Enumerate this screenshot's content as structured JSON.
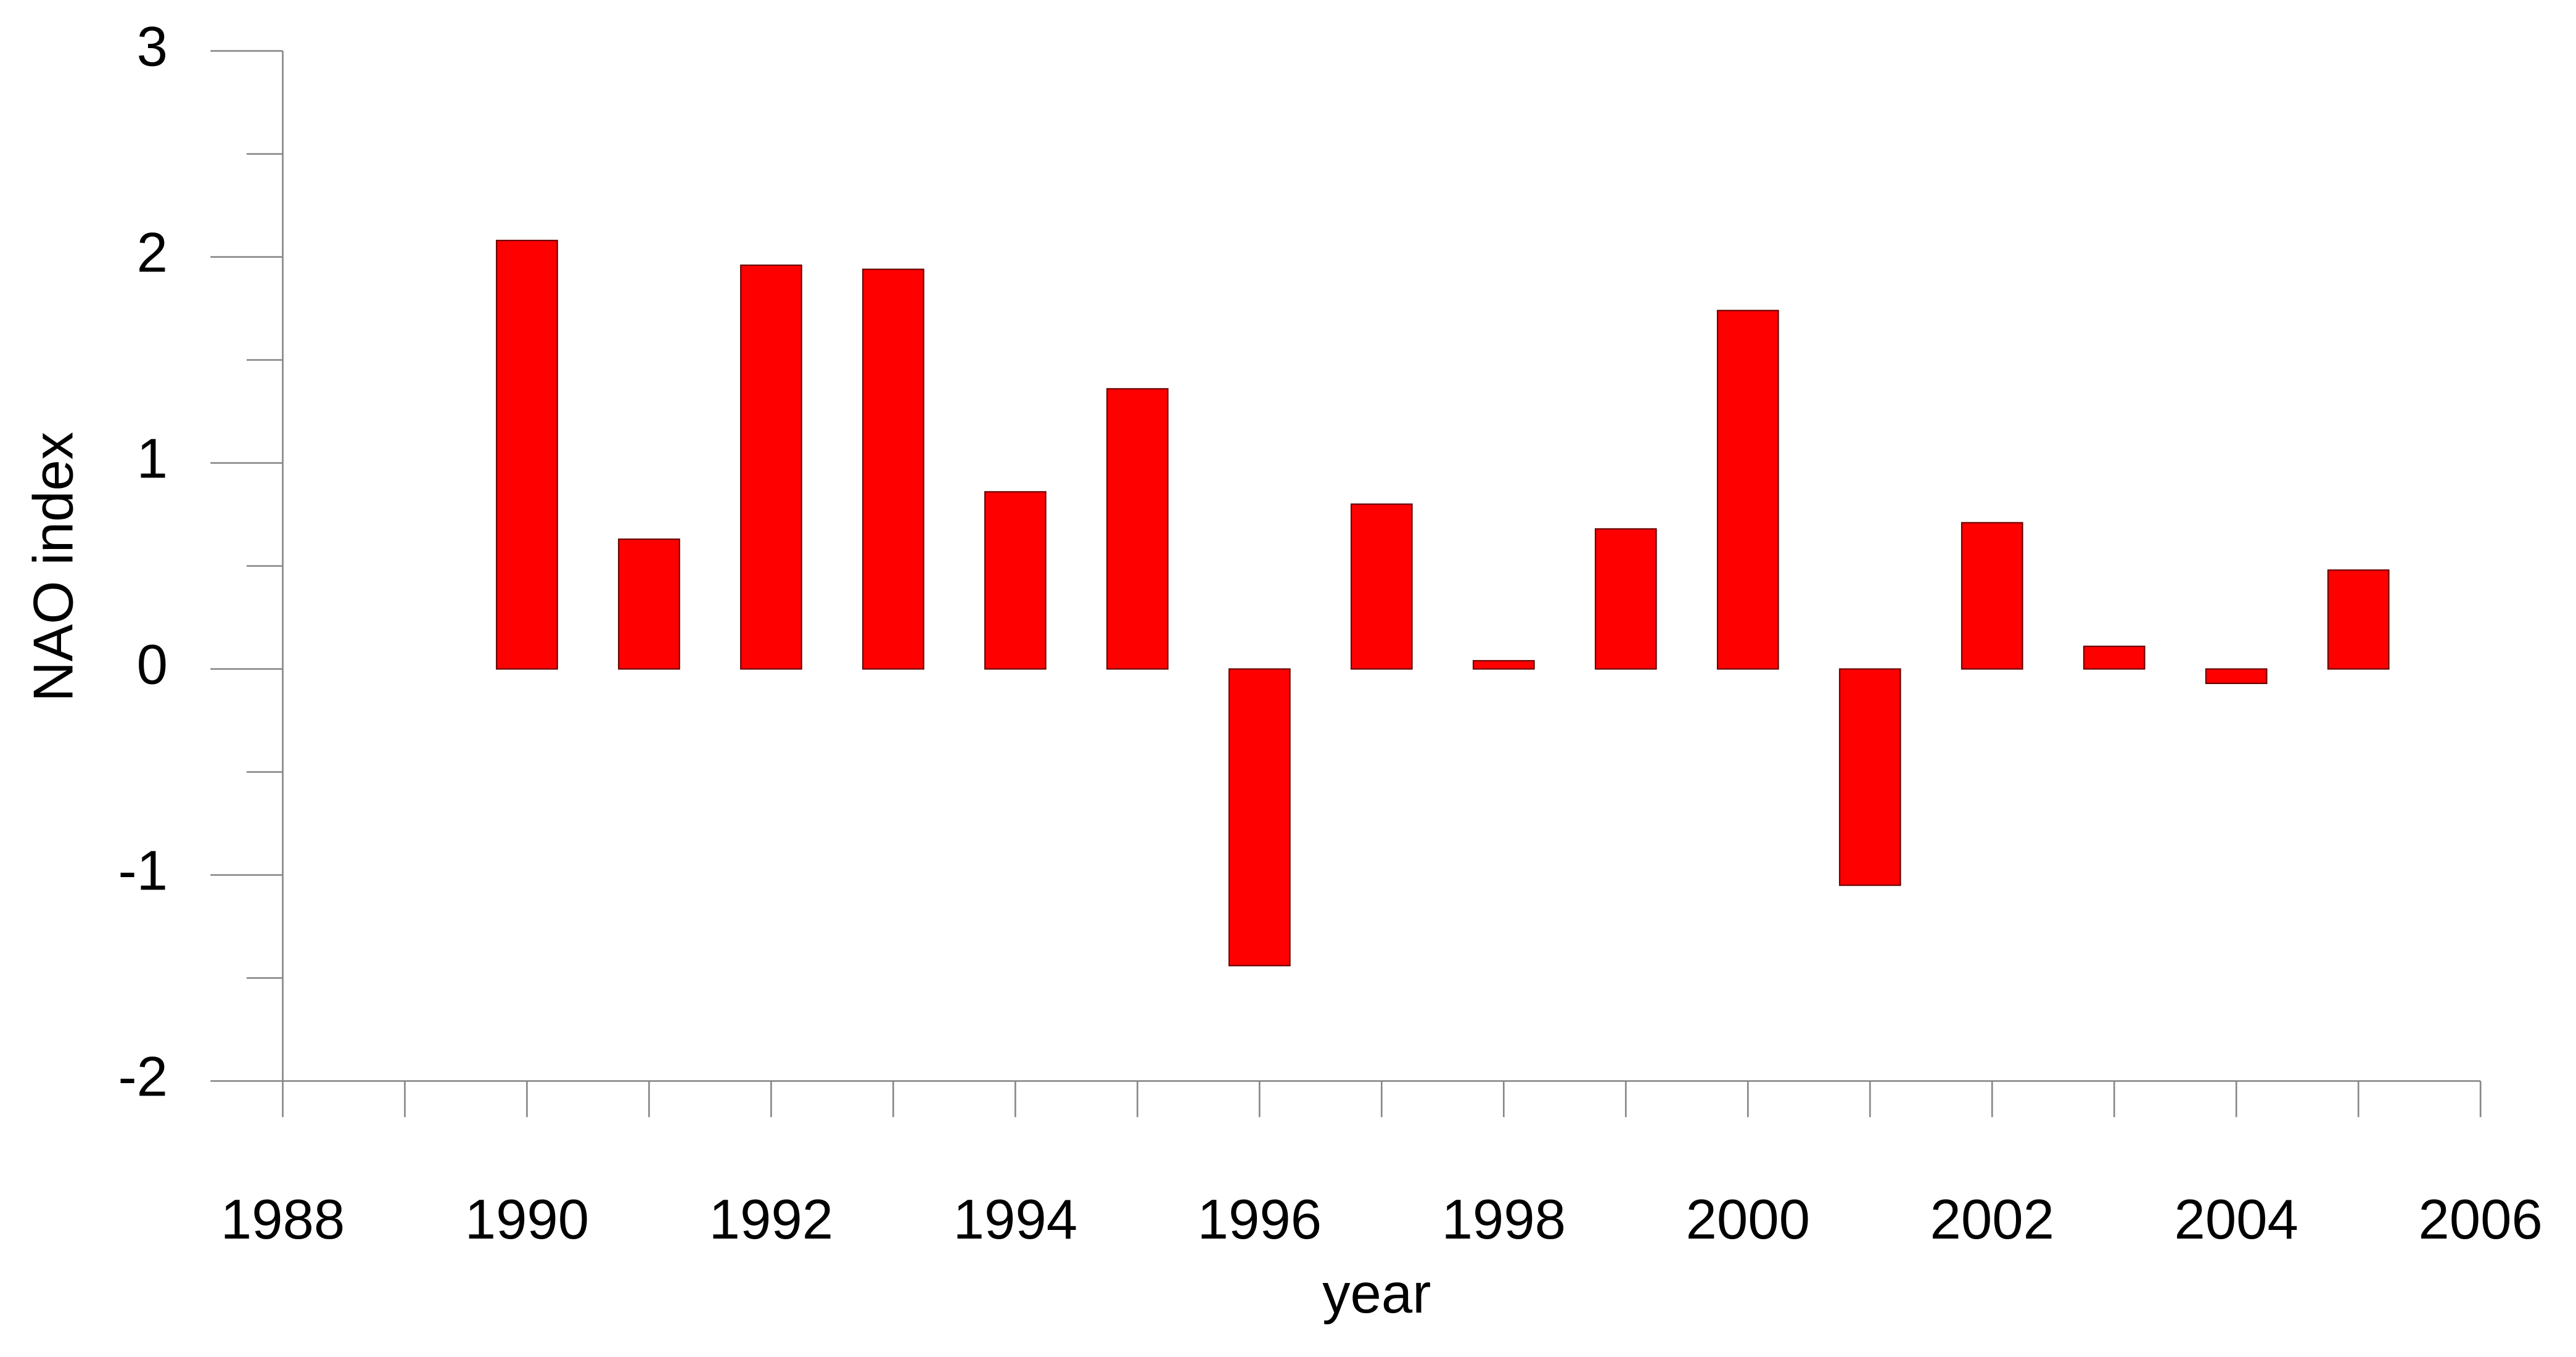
{
  "chart_data": {
    "type": "bar",
    "xlabel": "year",
    "ylabel": "NAO index",
    "x": [
      1990,
      1991,
      1992,
      1993,
      1994,
      1995,
      1996,
      1997,
      1998,
      1999,
      2000,
      2001,
      2002,
      2003,
      2004,
      2005
    ],
    "values": [
      2.08,
      0.63,
      1.96,
      1.94,
      0.86,
      1.36,
      -1.44,
      0.8,
      0.04,
      0.68,
      1.74,
      -1.05,
      0.71,
      0.11,
      -0.07,
      0.48
    ],
    "color": "#ff0000",
    "xlim": [
      1988,
      2006
    ],
    "xticks": [
      1988,
      1990,
      1992,
      1994,
      1996,
      1998,
      2000,
      2002,
      2004,
      2006
    ],
    "ylim": [
      -2,
      3
    ],
    "yticks": [
      -2,
      -1,
      0,
      1,
      2,
      3
    ]
  }
}
